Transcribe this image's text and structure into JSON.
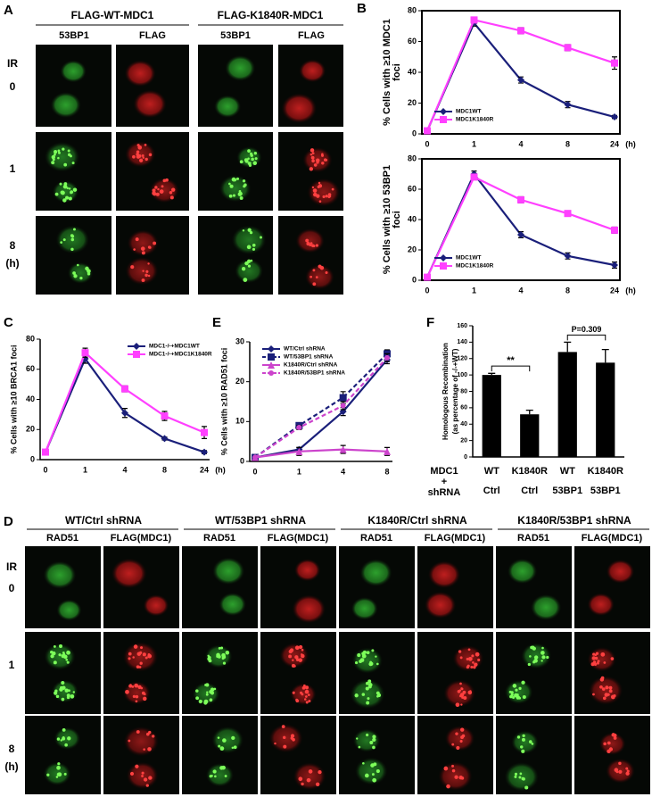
{
  "panel_labels": [
    "A",
    "B",
    "C",
    "D",
    "E",
    "F"
  ],
  "panel_a": {
    "headers": [
      "FLAG-WT-MDC1",
      "FLAG-K1840R-MDC1"
    ],
    "columns": [
      "53BP1",
      "FLAG",
      "53BP1",
      "FLAG"
    ],
    "row_labels": [
      "IR",
      "0",
      "1",
      "8",
      "(h)"
    ]
  },
  "panel_d": {
    "headers": [
      "WT/Ctrl shRNA",
      "WT/53BP1 shRNA",
      "K1840R/Ctrl shRNA",
      "K1840R/53BP1 shRNA"
    ],
    "columns": [
      "RAD51",
      "FLAG(MDC1)",
      "RAD51",
      "FLAG(MDC1)",
      "RAD51",
      "FLAG(MDC1)",
      "RAD51",
      "FLAG(MDC1)"
    ],
    "row_labels": [
      "IR",
      "0",
      "1",
      "8",
      "(h)"
    ]
  },
  "chart_data": [
    {
      "type": "line",
      "frame": true,
      "ylabel": [
        "% Cells with ≥10 MDC1",
        "foci"
      ],
      "xlabel": "(h)",
      "categories": [
        "0",
        "1",
        "4",
        "8",
        "24"
      ],
      "ylim": [
        0,
        80
      ],
      "yticks": [
        0,
        20,
        40,
        60,
        80
      ],
      "legend": "lower left",
      "series": [
        {
          "name": "MDC1WT",
          "color": "#1a1f7a",
          "marker": "diamond",
          "values": [
            2,
            72,
            35,
            19,
            11
          ],
          "errors": [
            0,
            2,
            2,
            2,
            1
          ]
        },
        {
          "name": "MDC1K1840R",
          "color": "#ff40ff",
          "marker": "square",
          "values": [
            2,
            74,
            67,
            56,
            46
          ],
          "errors": [
            0,
            1,
            2,
            2,
            4
          ]
        }
      ]
    },
    {
      "type": "line",
      "frame": true,
      "ylabel": [
        "% Cells with ≥10 53BP1",
        "foci"
      ],
      "xlabel": "(h)",
      "categories": [
        "0",
        "1",
        "4",
        "8",
        "24"
      ],
      "ylim": [
        0,
        80
      ],
      "yticks": [
        0,
        20,
        40,
        60,
        80
      ],
      "legend": "lower left",
      "series": [
        {
          "name": "MDC1WT",
          "color": "#1a1f7a",
          "marker": "diamond",
          "values": [
            2,
            70,
            30,
            16,
            10
          ],
          "errors": [
            0,
            2,
            2,
            2,
            2
          ]
        },
        {
          "name": "MDC1K1840R",
          "color": "#ff40ff",
          "marker": "square",
          "values": [
            2,
            68,
            53,
            44,
            33
          ],
          "errors": [
            0,
            1,
            2,
            1,
            2
          ]
        }
      ]
    },
    {
      "type": "line",
      "frame": false,
      "ylabel": [
        "% Cells with ≥10 BRCA1 foci"
      ],
      "xlabel": "(h)",
      "categories": [
        "0",
        "1",
        "4",
        "8",
        "24"
      ],
      "ylim": [
        0,
        80
      ],
      "yticks": [
        0,
        20,
        40,
        60,
        80
      ],
      "legend": "upper right",
      "series": [
        {
          "name": "MDC1-/-+MDC1WT",
          "color": "#1a1f7a",
          "marker": "diamond",
          "values": [
            5,
            67,
            31,
            14,
            5
          ],
          "errors": [
            0,
            3,
            3,
            1,
            1
          ]
        },
        {
          "name": "MDC1-/-+MDC1K1840R",
          "color": "#ff40ff",
          "marker": "square",
          "values": [
            5,
            71,
            47,
            29,
            18
          ],
          "errors": [
            0,
            3,
            2,
            3,
            4
          ]
        }
      ]
    },
    {
      "type": "line",
      "frame": false,
      "ylabel": [
        "% Cells with ≥10 RAD51 foci"
      ],
      "categories": [
        "0",
        "1",
        "4",
        "8"
      ],
      "ylim": [
        0,
        30
      ],
      "yticks": [
        0,
        10,
        20,
        30
      ],
      "legend": "upper left",
      "series": [
        {
          "name": "WT/Ctrl shRNA",
          "color": "#1a1f7a",
          "marker": "diamond",
          "dashed": false,
          "values": [
            1,
            3,
            12.5,
            25.5
          ],
          "errors": [
            0,
            0.5,
            1,
            1
          ]
        },
        {
          "name": "WT/53BP1 shRNA",
          "color": "#1a1f7a",
          "marker": "square",
          "dashed": true,
          "values": [
            1,
            9,
            16,
            27
          ],
          "errors": [
            0,
            0.7,
            1.5,
            1
          ]
        },
        {
          "name": "K1840R/Ctrl shRNA",
          "color": "#cc44cc",
          "marker": "triangle",
          "dashed": false,
          "values": [
            1,
            2.5,
            3,
            2.5
          ],
          "errors": [
            0,
            1,
            1,
            1
          ]
        },
        {
          "name": "K1840R/53BP1 shRNA",
          "color": "#cc44cc",
          "marker": "circle",
          "dashed": true,
          "values": [
            1,
            8.5,
            14,
            26
          ],
          "errors": [
            0,
            0.5,
            1,
            1
          ]
        }
      ]
    },
    {
      "type": "bar",
      "ylabel": [
        "Homologous Recombination",
        "(as percentage of -/-+WT)"
      ],
      "row_label": [
        "MDC1",
        "+",
        "shRNA"
      ],
      "categories": [
        "WT",
        "K1840R",
        "WT",
        "K1840R"
      ],
      "shrna": [
        "Ctrl",
        "Ctrl",
        "53BP1",
        "53BP1"
      ],
      "values": [
        100,
        52,
        128,
        115
      ],
      "errors": [
        2,
        5,
        12,
        16
      ],
      "color": "#000000",
      "ylim": [
        0,
        160
      ],
      "yticks": [
        0,
        20,
        40,
        60,
        80,
        100,
        120,
        140,
        160
      ],
      "annotations": [
        "**",
        "P=0.309"
      ]
    }
  ]
}
